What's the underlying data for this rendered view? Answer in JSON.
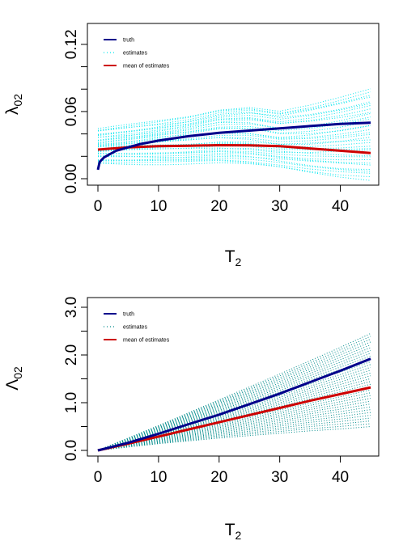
{
  "chart_data": [
    {
      "type": "line",
      "ylabel": "λ02",
      "ylabel_main": "λ",
      "ylabel_sub": "02",
      "xlabel": "T2",
      "xlabel_main": "T",
      "xlabel_sub": "2",
      "xlim": [
        0,
        45
      ],
      "ylim": [
        0,
        0.13
      ],
      "x_ticks": [
        0,
        10,
        20,
        30,
        40
      ],
      "x_tick_labels": [
        "0",
        "10",
        "20",
        "30",
        "40"
      ],
      "y_ticks": [
        0,
        0.02,
        0.04,
        0.06,
        0.08,
        0.1,
        0.12
      ],
      "y_tick_labels": [
        "0.00",
        "",
        "",
        "0.06",
        "",
        "",
        "0.12"
      ],
      "grid": false,
      "legend_position": "top-left",
      "legend": [
        {
          "label": "truth",
          "color": "#00008B",
          "style": "solid"
        },
        {
          "label": "estimates",
          "color": "#00E5EE",
          "style": "dotted"
        },
        {
          "label": "mean of estimates",
          "color": "#CD0000",
          "style": "solid"
        }
      ],
      "series": [
        {
          "name": "truth",
          "color": "#00008B",
          "x": [
            0,
            0.3,
            1,
            2,
            3,
            5,
            7,
            10,
            15,
            20,
            25,
            30,
            35,
            40,
            45
          ],
          "y": [
            0.008,
            0.015,
            0.019,
            0.022,
            0.025,
            0.028,
            0.031,
            0.034,
            0.038,
            0.041,
            0.043,
            0.045,
            0.047,
            0.049,
            0.05
          ]
        },
        {
          "name": "mean of estimates",
          "color": "#CD0000",
          "x": [
            0,
            5,
            10,
            15,
            20,
            25,
            30,
            35,
            40,
            45
          ],
          "y": [
            0.026,
            0.028,
            0.029,
            0.0295,
            0.03,
            0.0298,
            0.029,
            0.027,
            0.025,
            0.023
          ]
        }
      ],
      "estimates_band": {
        "x": [
          0,
          5,
          10,
          15,
          20,
          25,
          30,
          35,
          40,
          45
        ],
        "lower": [
          0.014,
          0.014,
          0.014,
          0.014,
          0.014,
          0.012,
          0.009,
          0.005,
          0.002,
          0.0
        ],
        "upper": [
          0.044,
          0.048,
          0.052,
          0.056,
          0.062,
          0.064,
          0.06,
          0.065,
          0.072,
          0.08
        ]
      }
    },
    {
      "type": "line",
      "ylabel": "Λ02",
      "ylabel_main": "Λ",
      "ylabel_sub": "02",
      "xlabel": "T2",
      "xlabel_main": "T",
      "xlabel_sub": "2",
      "xlim": [
        0,
        45
      ],
      "ylim": [
        0,
        3.0
      ],
      "x_ticks": [
        0,
        10,
        20,
        30,
        40
      ],
      "x_tick_labels": [
        "0",
        "10",
        "20",
        "30",
        "40"
      ],
      "y_ticks": [
        0,
        0.5,
        1.0,
        1.5,
        2.0,
        2.5,
        3.0
      ],
      "y_tick_labels": [
        "0.0",
        "",
        "1.0",
        "",
        "2.0",
        "",
        "3.0"
      ],
      "grid": false,
      "legend_position": "top-left",
      "legend": [
        {
          "label": "truth",
          "color": "#00008B",
          "style": "solid"
        },
        {
          "label": "estimates",
          "color": "#008B8B",
          "style": "dotted"
        },
        {
          "label": "mean of estimates",
          "color": "#CD0000",
          "style": "solid"
        }
      ],
      "series": [
        {
          "name": "truth",
          "color": "#00008B",
          "x": [
            0,
            5,
            10,
            15,
            20,
            25,
            30,
            35,
            40,
            45
          ],
          "y": [
            0,
            0.16,
            0.35,
            0.55,
            0.75,
            0.97,
            1.19,
            1.43,
            1.67,
            1.92
          ]
        },
        {
          "name": "mean of estimates",
          "color": "#CD0000",
          "x": [
            0,
            5,
            10,
            15,
            20,
            25,
            30,
            35,
            40,
            45
          ],
          "y": [
            0,
            0.14,
            0.29,
            0.44,
            0.59,
            0.74,
            0.89,
            1.04,
            1.18,
            1.32
          ]
        }
      ],
      "estimates_band": {
        "x": [
          0,
          5,
          10,
          15,
          20,
          25,
          30,
          35,
          40,
          45
        ],
        "lower": [
          0,
          0.07,
          0.14,
          0.2,
          0.26,
          0.31,
          0.36,
          0.41,
          0.45,
          0.5
        ],
        "upper": [
          0,
          0.26,
          0.52,
          0.79,
          1.06,
          1.33,
          1.6,
          1.88,
          2.16,
          2.45
        ]
      }
    }
  ]
}
